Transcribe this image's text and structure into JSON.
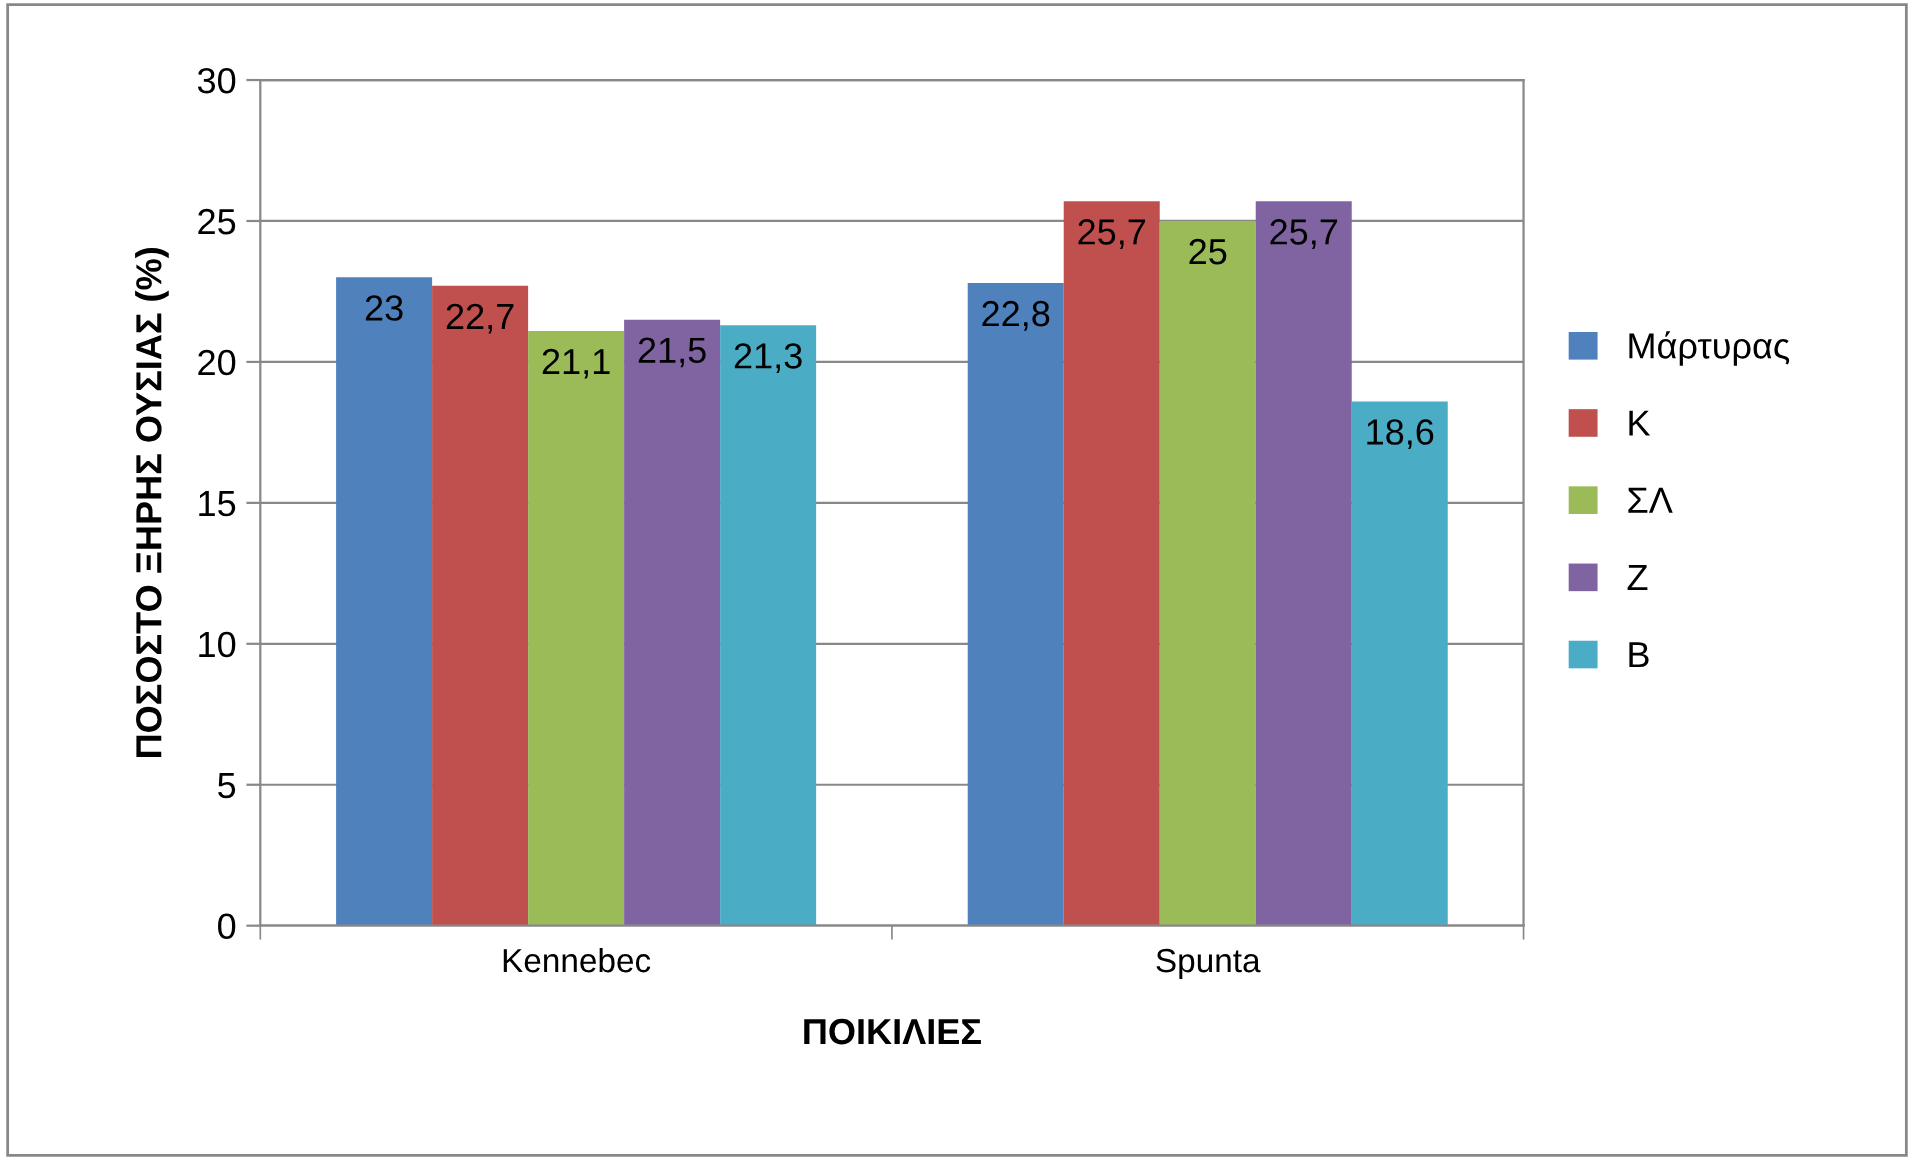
{
  "chart_data": {
    "type": "bar",
    "xlabel": "ΠΟΙΚΙΛΙΕΣ",
    "ylabel": "ΠΟΣΟΣΤΟ ΞΗΡΗΣ ΟΥΣΙΑΣ (%)",
    "categories": [
      "Kennebec",
      "Spunta"
    ],
    "series": [
      {
        "name": "Μάρτυρας",
        "color": "#4f81bd",
        "values": [
          23,
          22.8
        ],
        "value_labels": [
          "23",
          "22,8"
        ]
      },
      {
        "name": "Κ",
        "color": "#c0504d",
        "values": [
          22.7,
          25.7
        ],
        "value_labels": [
          "22,7",
          "25,7"
        ]
      },
      {
        "name": "ΣΛ",
        "color": "#9bbb59",
        "values": [
          21.1,
          25
        ],
        "value_labels": [
          "21,1",
          "25"
        ]
      },
      {
        "name": "Ζ",
        "color": "#8064a2",
        "values": [
          21.5,
          25.7
        ],
        "value_labels": [
          "21,5",
          "25,7"
        ]
      },
      {
        "name": "Β",
        "color": "#4bacc6",
        "values": [
          21.3,
          18.6
        ],
        "value_labels": [
          "21,3",
          "18,6"
        ]
      }
    ],
    "ylim": [
      0,
      30
    ],
    "yticks": [
      0,
      5,
      10,
      15,
      20,
      25,
      30
    ],
    "grid": "y",
    "legend": "right"
  }
}
